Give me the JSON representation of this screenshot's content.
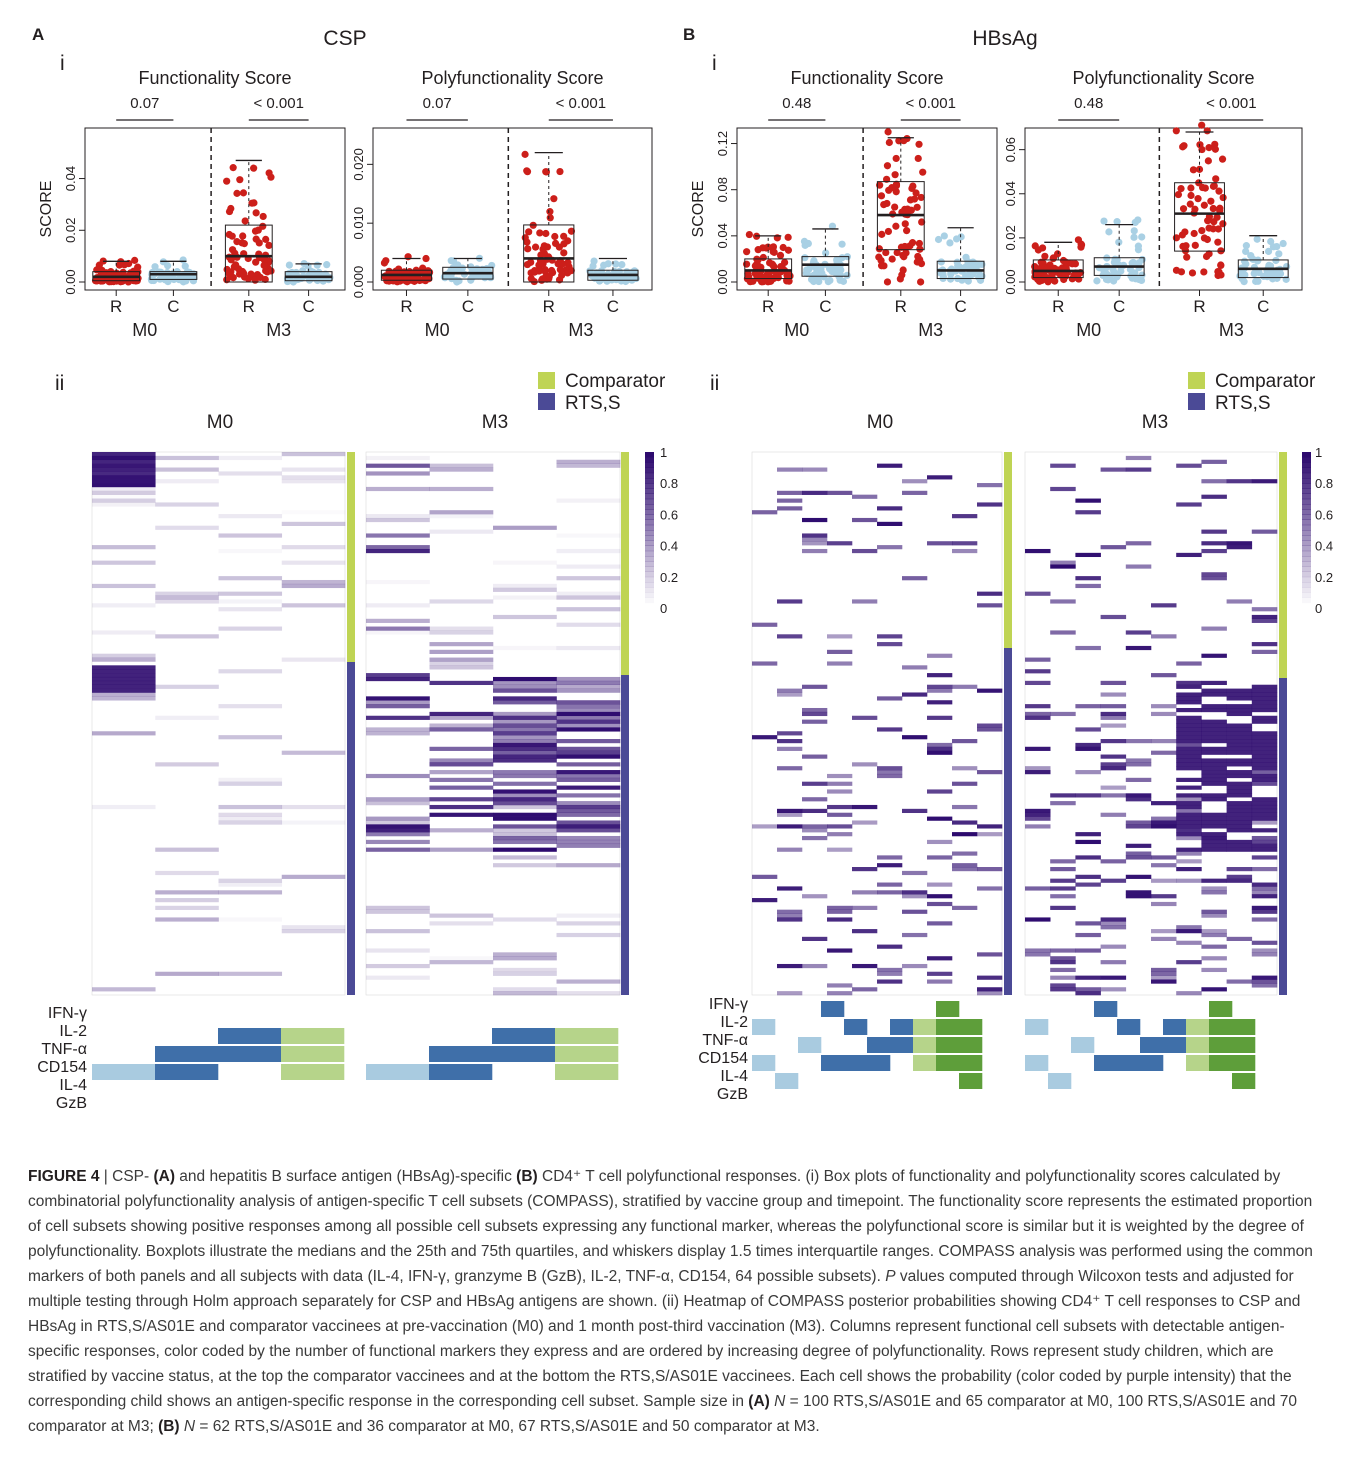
{
  "figure": {
    "panels": [
      {
        "letter": "A",
        "antigen": "CSP",
        "sub_i": "i",
        "sub_ii": "ii",
        "boxplots": [
          {
            "title": "Functionality Score",
            "ylabel": "SCORE",
            "yticks": [
              "0.00",
              "0.02",
              "0.04"
            ],
            "ymax": 0.058,
            "pvals": [
              "0.07",
              "< 0.001"
            ]
          },
          {
            "title": "Polyfunctionality Score",
            "ylabel": "",
            "yticks": [
              "0.000",
              "0.010",
              "0.020"
            ],
            "ymax": 0.0255,
            "pvals": [
              "0.07",
              "< 0.001"
            ]
          }
        ],
        "heatmap_titles": [
          "M0",
          "M3"
        ]
      },
      {
        "letter": "B",
        "antigen": "HBsAg",
        "sub_i": "i",
        "sub_ii": "ii",
        "boxplots": [
          {
            "title": "Functionality Score",
            "ylabel": "SCORE",
            "yticks": [
              "0.00",
              "0.04",
              "0.08",
              "0.12"
            ],
            "ymax": 0.13,
            "pvals": [
              "0.48",
              "< 0.001"
            ]
          },
          {
            "title": "Polyfunctionality Score",
            "ylabel": "",
            "yticks": [
              "0.00",
              "0.02",
              "0.04",
              "0.06"
            ],
            "ymax": 0.068,
            "pvals": [
              "0.48",
              "< 0.001"
            ]
          }
        ],
        "heatmap_titles": [
          "M0",
          "M3"
        ]
      }
    ],
    "group_labels": [
      "R",
      "C",
      "R",
      "C"
    ],
    "timepoints": [
      "M0",
      "M3"
    ],
    "legend": {
      "comparator": "Comparator",
      "rtss": "RTS,S",
      "comparator_color": "#bfd454",
      "rtss_color": "#4b4a96"
    },
    "colorbar": {
      "ticks": [
        "1",
        "0.8",
        "0.6",
        "0.4",
        "0.2",
        "0"
      ],
      "high_color": "#2d0a6e"
    },
    "markers": [
      "IFN-γ",
      "IL-2",
      "TNF-α",
      "CD154",
      "IL-4",
      "GzB"
    ],
    "point_colors": {
      "R": "#cc1f1a",
      "C": "#a9d0e4"
    }
  },
  "chart_data": [
    {
      "type": "box",
      "title": "Functionality Score",
      "panel": "A",
      "antigen": "CSP",
      "ylabel": "SCORE",
      "categories": [
        "M0 R",
        "M0 C",
        "M3 R",
        "M3 C"
      ],
      "medians": [
        0.002,
        0.003,
        0.01,
        0.002
      ],
      "q1": [
        0.0005,
        0.001,
        0.0,
        0.0005
      ],
      "q3": [
        0.004,
        0.004,
        0.022,
        0.004
      ],
      "whisker_high": [
        0.008,
        0.008,
        0.047,
        0.007
      ],
      "p_values": {
        "M0": "0.07",
        "M3": "< 0.001"
      }
    },
    {
      "type": "box",
      "title": "Polyfunctionality Score",
      "panel": "A",
      "antigen": "CSP",
      "categories": [
        "M0 R",
        "M0 C",
        "M3 R",
        "M3 C"
      ],
      "medians": [
        0.0012,
        0.0015,
        0.004,
        0.0012
      ],
      "q1": [
        0.0003,
        0.0005,
        0.0,
        0.0003
      ],
      "q3": [
        0.002,
        0.0025,
        0.0097,
        0.002
      ],
      "whisker_high": [
        0.004,
        0.004,
        0.022,
        0.004
      ],
      "p_values": {
        "M0": "0.07",
        "M3": "< 0.001"
      }
    },
    {
      "type": "box",
      "title": "Functionality Score",
      "panel": "B",
      "antigen": "HBsAg",
      "ylabel": "SCORE",
      "categories": [
        "M0 R",
        "M0 C",
        "M3 R",
        "M3 C"
      ],
      "medians": [
        0.01,
        0.015,
        0.058,
        0.01
      ],
      "q1": [
        0.003,
        0.005,
        0.028,
        0.003
      ],
      "q3": [
        0.02,
        0.022,
        0.087,
        0.018
      ],
      "whisker_high": [
        0.04,
        0.046,
        0.125,
        0.047
      ],
      "p_values": {
        "M0": "0.48",
        "M3": "< 0.001"
      }
    },
    {
      "type": "box",
      "title": "Polyfunctionality Score",
      "panel": "B",
      "antigen": "HBsAg",
      "categories": [
        "M0 R",
        "M0 C",
        "M3 R",
        "M3 C"
      ],
      "medians": [
        0.005,
        0.007,
        0.031,
        0.006
      ],
      "q1": [
        0.002,
        0.003,
        0.014,
        0.002
      ],
      "q3": [
        0.01,
        0.011,
        0.045,
        0.01
      ],
      "whisker_high": [
        0.018,
        0.026,
        0.068,
        0.021
      ],
      "p_values": {
        "M0": "0.48",
        "M3": "< 0.001"
      }
    }
  ],
  "caption": {
    "fig_label": "FIGURE 4",
    "sep": " | ",
    "t1": "CSP- ",
    "a": "(A)",
    "t2": " and hepatitis B surface antigen (HBsAg)-specific ",
    "b": "(B)",
    "t3": " CD4⁺ T cell polyfunctional responses. (i) Box plots of functionality and polyfunctionality scores calculated by combinatorial polyfunctionality analysis of antigen-specific T cell subsets (COMPASS), stratified by vaccine group and timepoint. The functionality score represents the estimated proportion of cell subsets showing positive responses among all possible cell subsets expressing any functional marker, whereas the polyfunctional score is similar but it is weighted by the degree of polyfunctionality. Boxplots illustrate the medians and the 25th and 75th quartiles, and whiskers display 1.5 times interquartile ranges. COMPASS analysis was performed using the common markers of both panels and all subjects with data (IL-4, IFN-γ, granzyme B (GzB), IL-2, TNF-α, CD154, 64 possible subsets). ",
    "p": "P",
    "t4": " values computed through Wilcoxon tests and adjusted for multiple testing through Holm approach separately for CSP and HBsAg antigens are shown. (ii) Heatmap of COMPASS posterior probabilities showing CD4⁺ T cell responses to CSP and HBsAg in RTS,S/AS01E and comparator vaccinees at pre-vaccination (M0) and 1 month post-third vaccination (M3). Columns represent functional cell subsets with detectable antigen-specific responses, color coded by the number of functional markers they express and are ordered by increasing degree of polyfunctionality. Rows represent study children, which are stratified by vaccine status, at the top the comparator vaccinees and at the bottom the RTS,S/AS01E vaccinees. Each cell shows the probability (color coded by purple intensity) that the corresponding child shows an antigen-specific response in the corresponding cell subset. Sample size in ",
    "a2": "(A)",
    "t5": " ",
    "n1": "N",
    "t6": " = 100 RTS,S/AS01E and 65 comparator at M0, 100 RTS,S/AS01E and 70 comparator at M3; ",
    "b2": "(B)",
    "t7": " ",
    "n2": "N",
    "t8": " = 62 RTS,S/AS01E and 36 comparator at M0, 67 RTS,S/AS01E and 50 comparator at M3."
  }
}
